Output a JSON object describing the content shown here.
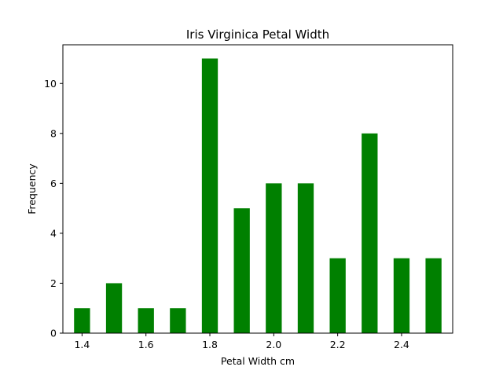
{
  "chart_data": {
    "type": "bar",
    "title": "Iris Virginica Petal Width",
    "xlabel": "Petal Width cm",
    "ylabel": "Frequency",
    "bar_color": "#008000",
    "x": [
      1.4,
      1.5,
      1.6,
      1.7,
      1.8,
      1.9,
      2.0,
      2.1,
      2.2,
      2.3,
      2.4,
      2.5
    ],
    "values": [
      1,
      2,
      1,
      1,
      11,
      5,
      6,
      6,
      3,
      8,
      3,
      3
    ],
    "xlim": [
      1.34,
      2.56
    ],
    "ylim": [
      0,
      11.55
    ],
    "xticks": [
      "1.4",
      "1.6",
      "1.8",
      "2.0",
      "2.2",
      "2.4"
    ],
    "yticks": [
      "0",
      "2",
      "4",
      "6",
      "8",
      "10"
    ],
    "grid": false,
    "legend": "none"
  }
}
